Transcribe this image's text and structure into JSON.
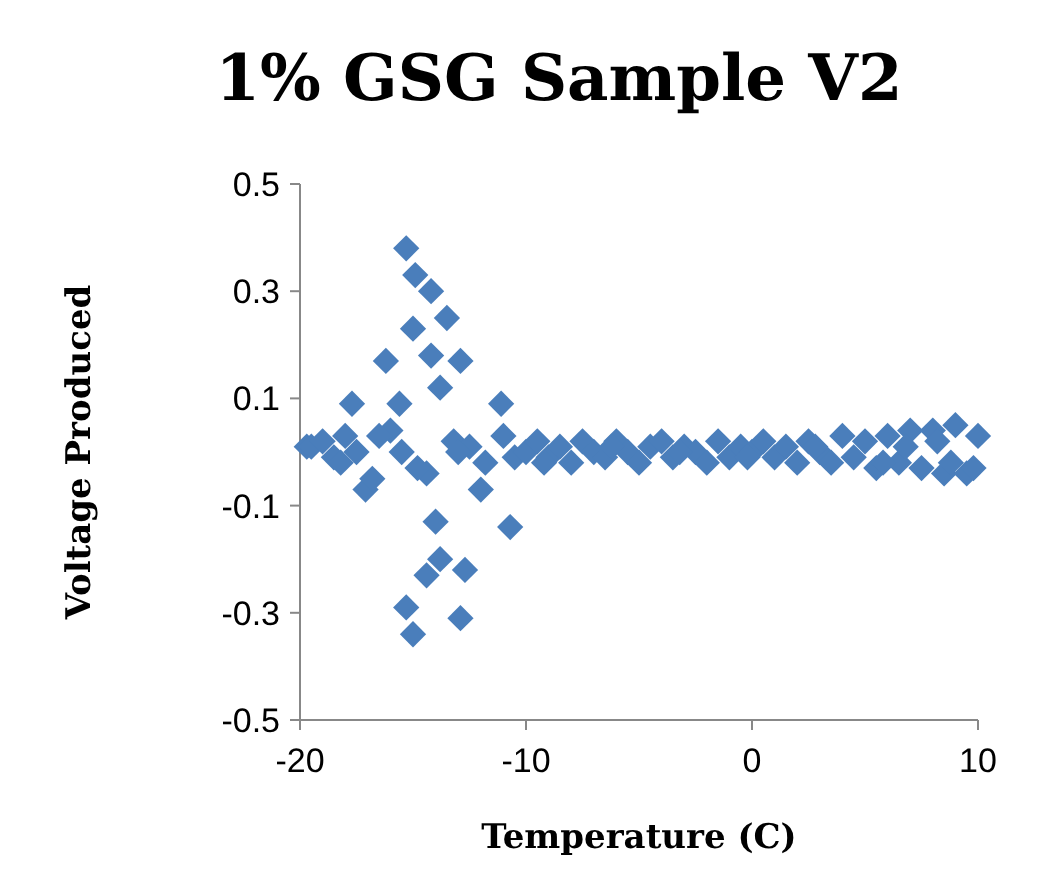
{
  "chart_data": {
    "type": "scatter",
    "title": "1% GSG Sample V2",
    "xlabel": "Temperature (C)",
    "ylabel": "Voltage Produced",
    "xlim": [
      -20,
      10
    ],
    "ylim": [
      -0.5,
      0.5
    ],
    "xticks": [
      -20,
      -10,
      0,
      10
    ],
    "yticks": [
      0.5,
      0.3,
      0.1,
      -0.1,
      -0.3,
      -0.5
    ],
    "grid": false,
    "marker": "diamond",
    "series": [
      {
        "color": "#4a7ebb",
        "x": [
          -15.3,
          -14.9,
          -14.2,
          -13.5,
          -15.0,
          -16.2,
          -14.2,
          -12.9,
          -17.7,
          -15.6,
          -13.8,
          -11.1,
          -19.7,
          -17.1,
          -14.4,
          -12.0,
          -10.7,
          -14.0,
          -13.8,
          -12.7,
          -14.4,
          -15.3,
          -12.9,
          -15.0,
          -19.5,
          -19.0,
          -18.5,
          -18.0,
          -17.5,
          -16.8,
          -16.0,
          -15.5,
          -14.8,
          -13.2,
          -12.5,
          -11.8,
          -11.0,
          -10.5,
          -10.0,
          -9.5,
          -9.0,
          -8.5,
          -8.0,
          -7.5,
          -7.0,
          -6.5,
          -6.0,
          -5.5,
          -5.0,
          -4.5,
          -4.0,
          -3.5,
          -3.0,
          -2.5,
          -2.0,
          -1.5,
          -1.0,
          -0.5,
          0.0,
          0.5,
          1.0,
          1.5,
          2.0,
          2.5,
          3.0,
          3.5,
          4.0,
          4.5,
          5.0,
          5.5,
          6.0,
          6.5,
          7.0,
          7.5,
          8.0,
          8.5,
          9.0,
          9.5,
          10.0,
          -18.2,
          -16.5,
          -13.0,
          -9.2,
          -6.2,
          -3.2,
          -0.2,
          2.8,
          5.8,
          8.2,
          9.8,
          6.8,
          8.8
        ],
        "values": [
          0.38,
          0.33,
          0.3,
          0.25,
          0.23,
          0.17,
          0.18,
          0.17,
          0.09,
          0.09,
          0.12,
          0.09,
          0.01,
          -0.07,
          -0.04,
          -0.07,
          -0.14,
          -0.13,
          -0.2,
          -0.22,
          -0.23,
          -0.29,
          -0.31,
          -0.34,
          0.01,
          0.02,
          -0.01,
          0.03,
          0.0,
          -0.05,
          0.04,
          0.0,
          -0.03,
          0.02,
          0.01,
          -0.02,
          0.03,
          -0.01,
          0.0,
          0.02,
          -0.01,
          0.01,
          -0.02,
          0.02,
          0.0,
          -0.01,
          0.02,
          0.0,
          -0.02,
          0.01,
          0.02,
          -0.01,
          0.01,
          0.0,
          -0.02,
          0.02,
          -0.01,
          0.01,
          0.0,
          0.02,
          -0.01,
          0.01,
          -0.02,
          0.02,
          0.0,
          -0.02,
          0.03,
          -0.01,
          0.02,
          -0.03,
          0.03,
          -0.02,
          0.04,
          -0.03,
          0.04,
          -0.04,
          0.05,
          -0.04,
          0.03,
          -0.02,
          0.03,
          0.0,
          -0.02,
          0.01,
          0.0,
          -0.01,
          0.01,
          -0.02,
          0.02,
          -0.03,
          0.01,
          -0.02
        ]
      }
    ]
  }
}
